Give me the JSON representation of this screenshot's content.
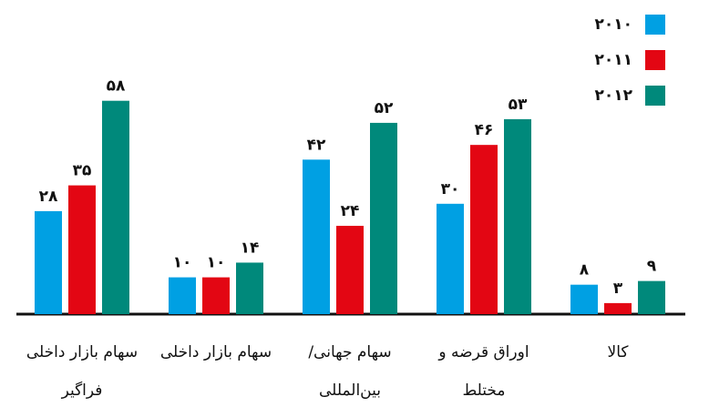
{
  "chart_data": {
    "type": "bar",
    "categories": [
      "سهام بازار داخلی فراگیر",
      "سهام بازار داخلی",
      "سهام جهانی/ بین‌المللی",
      "اوراق قرضه و مختلط",
      "کالا"
    ],
    "series": [
      {
        "name": "۲۰۱۰",
        "color": "#00a0e3",
        "values": [
          28,
          10,
          42,
          30,
          8
        ],
        "value_labels": [
          "۲۸",
          "۱۰",
          "۴۲",
          "۳۰",
          "۸"
        ]
      },
      {
        "name": "۲۰۱۱",
        "color": "#e30613",
        "values": [
          35,
          10,
          24,
          46,
          3
        ],
        "value_labels": [
          "۳۵",
          "۱۰",
          "۲۴",
          "۴۶",
          "۳"
        ]
      },
      {
        "name": "۲۰۱۲",
        "color": "#00897b",
        "values": [
          58,
          14,
          52,
          53,
          9
        ],
        "value_labels": [
          "۵۸",
          "۱۴",
          "۵۲",
          "۵۳",
          "۹"
        ]
      }
    ]
  }
}
